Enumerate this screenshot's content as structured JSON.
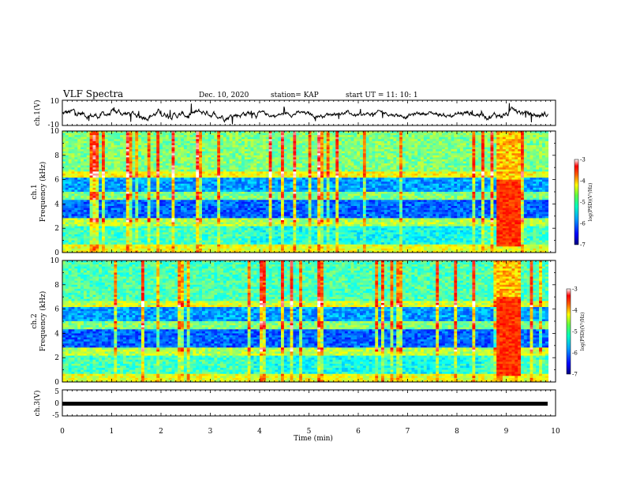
{
  "header": {
    "title": "VLF Spectra",
    "date": "Dec. 10, 2020",
    "station": "station= KAP",
    "start": "start  UT =   11: 10: 1"
  },
  "chart_data": [
    {
      "type": "line",
      "name": "ch1-waveform",
      "ylabel": "ch.1(V)",
      "ylim": [
        -10,
        10
      ],
      "ytick_labels": [
        "10",
        "-10"
      ],
      "xlim": [
        0,
        10
      ]
    },
    {
      "type": "heatmap",
      "name": "ch1-spectrogram",
      "ylabel": "ch.1 Frequency (kHz)",
      "ylabel_line1": "ch.1",
      "ylabel_line2": "Frequency  (kHz)",
      "ylim": [
        0,
        10
      ],
      "ytick_labels": [
        "0",
        "2",
        "4",
        "6",
        "8",
        "10"
      ],
      "xlim": [
        0,
        10
      ],
      "colorbar": {
        "label": "log(PSD)(V²/Hz)",
        "range": [
          -7,
          -3
        ],
        "tick_labels": [
          "-3",
          "-4",
          "-5",
          "-6",
          "-7"
        ]
      },
      "features": [
        {
          "x_range": [
            8.8,
            9.3
          ],
          "y_range": [
            0.5,
            6
          ],
          "level": "high"
        }
      ]
    },
    {
      "type": "heatmap",
      "name": "ch2-spectrogram",
      "ylabel": "ch.2 Frequency (kHz)",
      "ylabel_line1": "ch.2",
      "ylabel_line2": "Frequency  (kHz)",
      "ylim": [
        0,
        10
      ],
      "ytick_labels": [
        "0",
        "2",
        "4",
        "6",
        "8",
        "10"
      ],
      "xlim": [
        0,
        10
      ],
      "colorbar": {
        "label": "log(PSD)(V²/Hz)",
        "range": [
          -7,
          -3
        ],
        "tick_labels": [
          "-3",
          "-4",
          "-5",
          "-6",
          "-7"
        ]
      },
      "features": [
        {
          "x_range": [
            8.8,
            9.3
          ],
          "y_range": [
            0.5,
            7
          ],
          "level": "high"
        }
      ]
    },
    {
      "type": "line",
      "name": "ch3-signal",
      "ylabel": "ch.3(V)",
      "ylim": [
        -5,
        5
      ],
      "ytick_labels": [
        "5",
        "0",
        "-5"
      ],
      "level": -0.3,
      "xlim": [
        0,
        10
      ],
      "xlabel": "Time  (min)",
      "xtick_labels": [
        "0",
        "1",
        "2",
        "3",
        "4",
        "5",
        "6",
        "7",
        "8",
        "9",
        "10"
      ]
    }
  ],
  "colors": {
    "colormap": [
      "#00007f",
      "#0000ff",
      "#0080ff",
      "#00ffff",
      "#80ff80",
      "#ffff00",
      "#ff8000",
      "#ff0000",
      "#ffffff"
    ]
  }
}
